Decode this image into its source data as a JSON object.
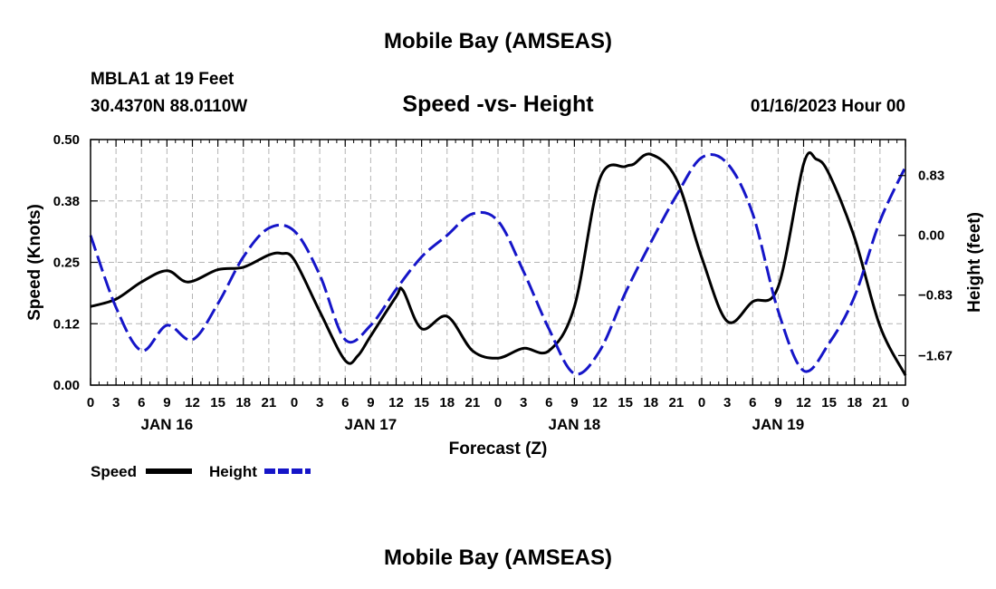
{
  "header": {
    "title": "Mobile Bay (AMSEAS)",
    "station": "MBLA1 at 19 Feet",
    "coords": "30.4370N  88.0110W",
    "subtitle": "Speed -vs- Height",
    "datetime": "01/16/2023 Hour 00"
  },
  "footer": {
    "title": "Mobile Bay (AMSEAS)"
  },
  "colors": {
    "speed": "#000000",
    "height": "#1515c8",
    "grid": "#b4b4b4"
  },
  "chart_data": {
    "type": "line",
    "title": "Speed -vs- Height",
    "xlabel": "Forecast (Z)",
    "ylabel": "Speed (Knots)",
    "ylabel_right": "Height (feet)",
    "x_unit": "hours since 01/16/2023 00Z",
    "xlim": [
      0,
      96
    ],
    "ylim": [
      0,
      0.5
    ],
    "ylim_right": [
      -2.08,
      1.33
    ],
    "grid": true,
    "x_ticks": [
      0,
      3,
      6,
      9,
      12,
      15,
      18,
      21,
      24,
      27,
      30,
      33,
      36,
      39,
      42,
      45,
      48,
      51,
      54,
      57,
      60,
      63,
      66,
      69,
      72,
      75,
      78,
      81,
      84,
      87,
      90,
      93,
      96
    ],
    "x_tick_labels": [
      "0",
      "3",
      "6",
      "9",
      "12",
      "15",
      "18",
      "21",
      "0",
      "3",
      "6",
      "9",
      "12",
      "15",
      "18",
      "21",
      "0",
      "3",
      "6",
      "9",
      "12",
      "15",
      "18",
      "21",
      "0",
      "3",
      "6",
      "9",
      "12",
      "15",
      "18",
      "21",
      "0"
    ],
    "date_labels": [
      {
        "x": 9,
        "label": "JAN 16"
      },
      {
        "x": 33,
        "label": "JAN 17"
      },
      {
        "x": 57,
        "label": "JAN 18"
      },
      {
        "x": 81,
        "label": "JAN 19"
      }
    ],
    "y_ticks": [
      0.0,
      0.125,
      0.25,
      0.375,
      0.5
    ],
    "y_tick_labels": [
      "0.00",
      "0.12",
      "0.25",
      "0.38",
      "0.50"
    ],
    "y_right_ticks": [
      0.83,
      0.0,
      -0.83,
      -1.67
    ],
    "y_right_tick_labels": [
      "0.83",
      "0.00",
      "−0.83",
      "−1.67"
    ],
    "legend": {
      "position": "bottom-left",
      "entries": [
        "Speed",
        "Height"
      ]
    },
    "series": [
      {
        "name": "Speed",
        "axis": "left",
        "style": "solid",
        "x": [
          0,
          3,
          6,
          9,
          11.5,
          15,
          18,
          21,
          22.5,
          24,
          27,
          30,
          31.5,
          33,
          36,
          36.8,
          39,
          42,
          45,
          48,
          51,
          54,
          57,
          60,
          63,
          64,
          66,
          69,
          72,
          75,
          78,
          81,
          84,
          85.5,
          87,
          90,
          93,
          96
        ],
        "y": [
          0.16,
          0.175,
          0.21,
          0.233,
          0.21,
          0.235,
          0.24,
          0.265,
          0.268,
          0.255,
          0.15,
          0.05,
          0.06,
          0.1,
          0.18,
          0.193,
          0.115,
          0.14,
          0.07,
          0.055,
          0.075,
          0.07,
          0.16,
          0.42,
          0.445,
          0.45,
          0.47,
          0.42,
          0.26,
          0.13,
          0.17,
          0.2,
          0.45,
          0.46,
          0.43,
          0.3,
          0.12,
          0.02
        ]
      },
      {
        "name": "Height",
        "axis": "right",
        "style": "dashed",
        "x": [
          0,
          3,
          6,
          9,
          12,
          15,
          18,
          21,
          24,
          27,
          30,
          33,
          36,
          39,
          42,
          45,
          48,
          51,
          54,
          57,
          60,
          63,
          66,
          69,
          72,
          75,
          78,
          81,
          84,
          87,
          90,
          93,
          96
        ],
        "y": [
          0.0,
          -1.0,
          -1.6,
          -1.25,
          -1.45,
          -0.95,
          -0.3,
          0.1,
          0.06,
          -0.55,
          -1.45,
          -1.25,
          -0.75,
          -0.3,
          0.0,
          0.3,
          0.2,
          -0.5,
          -1.3,
          -1.92,
          -1.6,
          -0.8,
          -0.1,
          0.55,
          1.08,
          1.0,
          0.3,
          -1.05,
          -1.88,
          -1.5,
          -0.85,
          0.2,
          0.95
        ]
      }
    ]
  }
}
